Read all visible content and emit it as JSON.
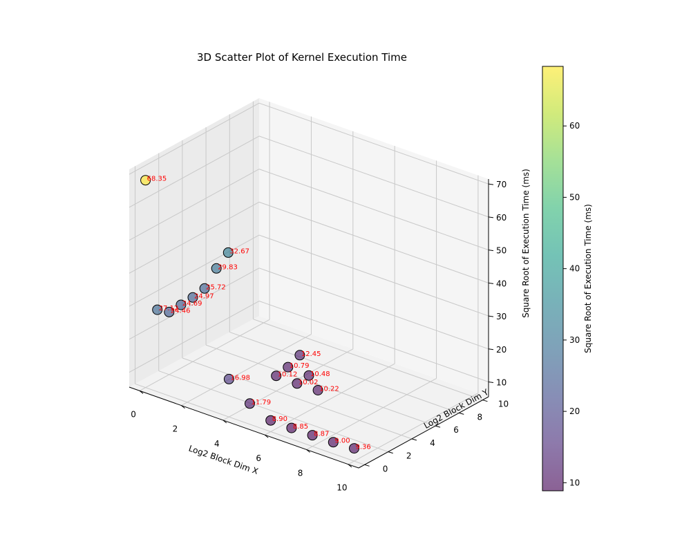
{
  "chart_data": {
    "type": "scatter",
    "projection": "3d",
    "title": "3D Scatter Plot of Kernel Execution Time",
    "xlabel": "Log2 Block Dim X",
    "ylabel": "Log2 Block Dim Y",
    "zlabel": "Square Root of Execution Time (ms)",
    "xlim": [
      -0.5,
      10.5
    ],
    "ylim": [
      -0.5,
      10.5
    ],
    "zlim": [
      5.5,
      71.5
    ],
    "xticks": [
      "0",
      "2",
      "4",
      "6",
      "8",
      "10"
    ],
    "yticks": [
      "0",
      "2",
      "4",
      "6",
      "8",
      "10"
    ],
    "zticks": [
      "10",
      "20",
      "30",
      "40",
      "50",
      "60",
      "70"
    ],
    "grid": true,
    "colormap": "viridis",
    "colorbar": {
      "label": "Square Root of Execution Time (ms)",
      "range": [
        8.87,
        68.35
      ],
      "ticks": [
        "10",
        "20",
        "30",
        "40",
        "50",
        "60"
      ]
    },
    "points": [
      {
        "x": 0,
        "y": 0,
        "z": 68.35,
        "label": "68.35"
      },
      {
        "x": 0,
        "y": 1,
        "z": 27.12,
        "label": "27.12"
      },
      {
        "x": 0,
        "y": 2,
        "z": 24.46,
        "label": "24.46"
      },
      {
        "x": 0,
        "y": 3,
        "z": 24.69,
        "label": "24.69"
      },
      {
        "x": 0,
        "y": 4,
        "z": 24.97,
        "label": "24.97"
      },
      {
        "x": 0,
        "y": 5,
        "z": 25.72,
        "label": "25.72"
      },
      {
        "x": 0,
        "y": 6,
        "z": 29.83,
        "label": "29.83"
      },
      {
        "x": 0,
        "y": 7,
        "z": 32.67,
        "label": "32.67"
      },
      {
        "x": 4,
        "y": 0,
        "z": 16.98,
        "label": "16.98"
      },
      {
        "x": 5,
        "y": 0,
        "z": 11.79,
        "label": "11.79"
      },
      {
        "x": 6,
        "y": 0,
        "z": 8.9,
        "label": "8.90"
      },
      {
        "x": 7,
        "y": 0,
        "z": 8.85,
        "label": "8.85"
      },
      {
        "x": 8,
        "y": 0,
        "z": 8.87,
        "label": "8.87"
      },
      {
        "x": 9,
        "y": 0,
        "z": 9.0,
        "label": "9.00"
      },
      {
        "x": 10,
        "y": 0,
        "z": 9.36,
        "label": "9.36"
      },
      {
        "x": 4,
        "y": 4,
        "z": 10.12,
        "label": "10.12"
      },
      {
        "x": 4,
        "y": 5,
        "z": 10.79,
        "label": "10.79"
      },
      {
        "x": 4,
        "y": 6,
        "z": 12.45,
        "label": "12.45"
      },
      {
        "x": 5,
        "y": 4,
        "z": 10.02,
        "label": "10.02"
      },
      {
        "x": 5,
        "y": 5,
        "z": 10.48,
        "label": "10.48"
      },
      {
        "x": 6,
        "y": 4,
        "z": 10.22,
        "label": "10.22"
      }
    ]
  }
}
